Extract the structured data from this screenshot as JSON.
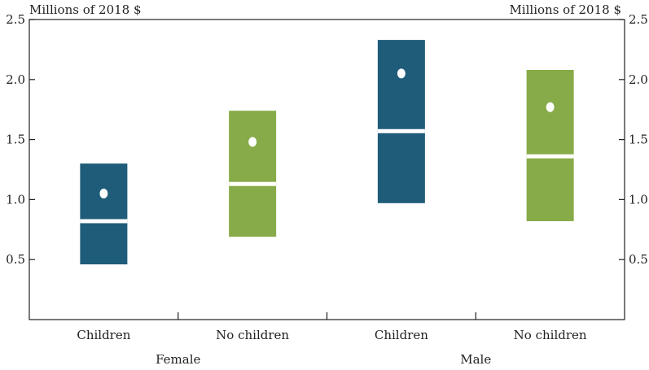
{
  "chart_data": {
    "type": "range-box",
    "y_unit_label_left": "Millions of 2018 $",
    "y_unit_label_right": "Millions of 2018 $",
    "ylim": [
      0,
      2.5
    ],
    "yticks": [
      0.5,
      1.0,
      1.5,
      2.0,
      2.5
    ],
    "ytick_labels": [
      "0.5",
      "1.0",
      "1.5",
      "2.0",
      "2.5"
    ],
    "grid": false,
    "groups": [
      {
        "label": "Female",
        "categories": [
          0,
          1
        ]
      },
      {
        "label": "Male",
        "categories": [
          2,
          3
        ]
      }
    ],
    "categories": [
      "Children",
      "No children",
      "Children",
      "No children"
    ],
    "boxes": [
      {
        "category": "Children",
        "group": "Female",
        "low": 0.46,
        "high": 1.3,
        "median": 0.82,
        "mean": 1.05,
        "color": "#1f5c7a"
      },
      {
        "category": "No children",
        "group": "Female",
        "low": 0.69,
        "high": 1.74,
        "median": 1.13,
        "mean": 1.48,
        "color": "#87ab48"
      },
      {
        "category": "Children",
        "group": "Male",
        "low": 0.97,
        "high": 2.33,
        "median": 1.57,
        "mean": 2.05,
        "color": "#1f5c7a"
      },
      {
        "category": "No children",
        "group": "Male",
        "low": 0.82,
        "high": 2.08,
        "median": 1.36,
        "mean": 1.77,
        "color": "#87ab48"
      }
    ]
  }
}
